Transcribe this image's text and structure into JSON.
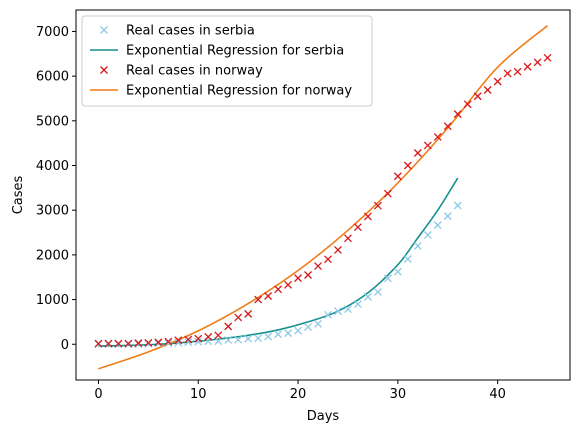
{
  "chart_data": {
    "type": "line",
    "title": "",
    "xlabel": "Days",
    "ylabel": "Cases",
    "xlim": [
      -2.25,
      47.25
    ],
    "ylim": [
      -800,
      7480
    ],
    "xticks": [
      0,
      10,
      20,
      30,
      40
    ],
    "yticks": [
      0,
      1000,
      2000,
      3000,
      4000,
      5000,
      6000,
      7000
    ],
    "grid": false,
    "legend_position": "top-left",
    "series": [
      {
        "name": "Real cases in serbia",
        "kind": "marker",
        "marker": "x",
        "color": "#8ecae6",
        "x": [
          0,
          1,
          2,
          3,
          4,
          5,
          6,
          7,
          8,
          9,
          10,
          11,
          12,
          13,
          14,
          15,
          16,
          17,
          18,
          19,
          20,
          21,
          22,
          23,
          24,
          25,
          26,
          27,
          28,
          29,
          30,
          31,
          32,
          33,
          34,
          35,
          36
        ],
        "y": [
          1,
          1,
          1,
          1,
          5,
          12,
          18,
          24,
          35,
          48,
          57,
          65,
          70,
          96,
          103,
          126,
          135,
          171,
          222,
          249,
          303,
          384,
          457,
          659,
          741,
          785,
          900,
          1060,
          1171,
          1476,
          1624,
          1908,
          2200,
          2447,
          2666,
          2867,
          3105
        ]
      },
      {
        "name": "Exponential Regression for serbia",
        "kind": "line",
        "color": "#17908f",
        "x": [
          0,
          3,
          6,
          9,
          12,
          15,
          18,
          21,
          24,
          27,
          30,
          32,
          34,
          36
        ],
        "y": [
          -40,
          -25,
          0,
          50,
          115,
          200,
          320,
          500,
          740,
          1150,
          1780,
          2380,
          3000,
          3720
        ]
      },
      {
        "name": "Real cases in norway",
        "kind": "marker",
        "marker": "x",
        "color": "#d7191c",
        "x": [
          0,
          1,
          2,
          3,
          4,
          5,
          6,
          7,
          8,
          9,
          10,
          11,
          12,
          13,
          14,
          15,
          16,
          17,
          18,
          19,
          20,
          21,
          22,
          23,
          24,
          25,
          26,
          27,
          28,
          29,
          30,
          31,
          32,
          33,
          34,
          35,
          36,
          37,
          38,
          39,
          40,
          41,
          42,
          43,
          44,
          45
        ],
        "y": [
          15,
          15,
          15,
          15,
          25,
          32,
          45,
          60,
          90,
          105,
          125,
          165,
          200,
          400,
          600,
          680,
          1000,
          1080,
          1230,
          1330,
          1480,
          1550,
          1750,
          1900,
          2110,
          2370,
          2620,
          2860,
          3100,
          3370,
          3760,
          4000,
          4280,
          4450,
          4640,
          4880,
          5150,
          5370,
          5550,
          5690,
          5880,
          6060,
          6100,
          6210,
          6310,
          6410
        ]
      },
      {
        "name": "Exponential Regression for norway",
        "kind": "line",
        "color": "#f07c17",
        "x": [
          0,
          5,
          10,
          15,
          20,
          25,
          30,
          35,
          40,
          45
        ],
        "y": [
          -550,
          -170,
          300,
          910,
          1650,
          2550,
          3610,
          4840,
          6200,
          7130
        ]
      }
    ]
  }
}
